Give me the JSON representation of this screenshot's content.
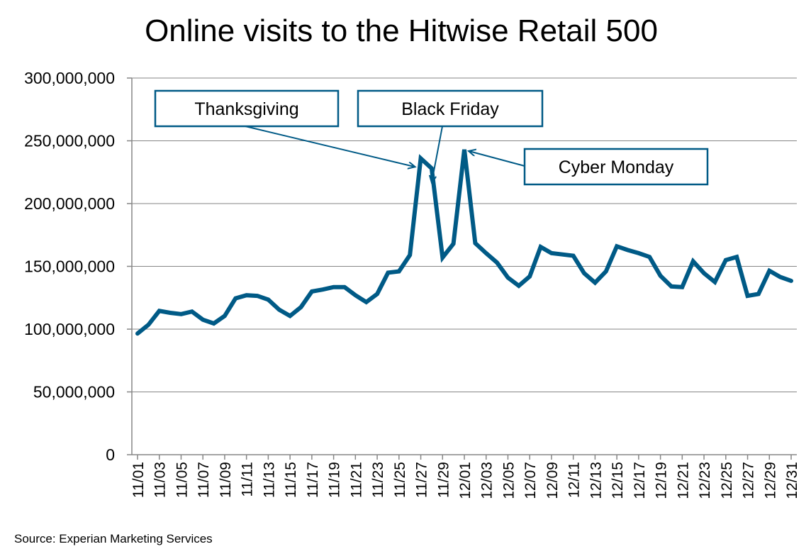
{
  "chart_data": {
    "type": "line",
    "title": "Online visits to the Hitwise Retail 500",
    "source": "Source: Experian Marketing Services",
    "xlabel": "",
    "ylabel": "",
    "ylim": [
      0,
      300000000
    ],
    "y_ticks": [
      0,
      50000000,
      100000000,
      150000000,
      200000000,
      250000000,
      300000000
    ],
    "y_tick_labels": [
      "0",
      "50,000,000",
      "100,000,000",
      "150,000,000",
      "200,000,000",
      "250,000,000",
      "300,000,000"
    ],
    "x": [
      "11/01",
      "11/02",
      "11/03",
      "11/04",
      "11/05",
      "11/06",
      "11/07",
      "11/08",
      "11/09",
      "11/10",
      "11/11",
      "11/12",
      "11/13",
      "11/14",
      "11/15",
      "11/16",
      "11/17",
      "11/18",
      "11/19",
      "11/20",
      "11/21",
      "11/22",
      "11/23",
      "11/24",
      "11/25",
      "11/26",
      "11/27",
      "11/28",
      "11/29",
      "11/30",
      "12/01",
      "12/02",
      "12/03",
      "12/04",
      "12/05",
      "12/06",
      "12/07",
      "12/08",
      "12/09",
      "12/10",
      "12/11",
      "12/12",
      "12/13",
      "12/14",
      "12/15",
      "12/16",
      "12/17",
      "12/18",
      "12/19",
      "12/20",
      "12/21",
      "12/22",
      "12/23",
      "12/24",
      "12/25",
      "12/26",
      "12/27",
      "12/28",
      "12/29",
      "12/30",
      "12/31"
    ],
    "x_tick_labels": [
      "11/01",
      "11/03",
      "11/05",
      "11/07",
      "11/09",
      "11/11",
      "11/13",
      "11/15",
      "11/17",
      "11/19",
      "11/21",
      "11/23",
      "11/25",
      "11/27",
      "11/29",
      "12/01",
      "12/03",
      "12/05",
      "12/07",
      "12/09",
      "12/11",
      "12/13",
      "12/15",
      "12/17",
      "12/19",
      "12/21",
      "12/23",
      "12/25",
      "12/27",
      "12/29",
      "12/31"
    ],
    "series": [
      {
        "name": "",
        "color": "#005a86",
        "values": [
          96500000,
          103500000,
          114500000,
          113000000,
          112000000,
          114000000,
          107500000,
          104500000,
          110500000,
          124500000,
          127000000,
          126500000,
          123500000,
          115500000,
          110500000,
          117500000,
          130000000,
          131500000,
          133500000,
          133500000,
          127000000,
          121500000,
          128000000,
          145000000,
          146000000,
          159000000,
          236000000,
          228000000,
          157000000,
          168000000,
          243000000,
          168500000,
          160500000,
          153000000,
          141000000,
          134500000,
          142000000,
          165500000,
          160500000,
          159500000,
          158500000,
          144500000,
          137000000,
          146000000,
          166000000,
          163000000,
          160500000,
          157500000,
          142500000,
          134000000,
          133500000,
          154000000,
          144500000,
          137500000,
          155000000,
          157500000,
          126500000,
          128000000,
          146500000,
          141500000,
          138500000
        ]
      }
    ],
    "grid": true,
    "annotations": [
      {
        "label": "Thanksgiving",
        "x": "11/27"
      },
      {
        "label": "Black Friday",
        "x": "11/28"
      },
      {
        "label": "Cyber Monday",
        "x": "12/01"
      }
    ]
  }
}
